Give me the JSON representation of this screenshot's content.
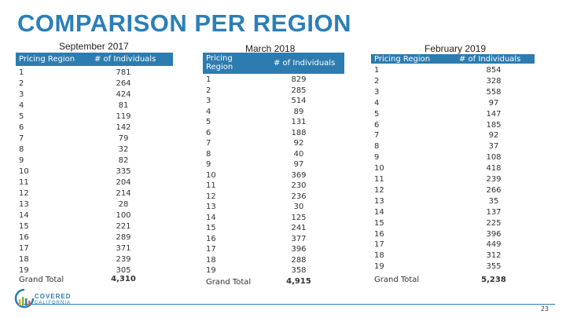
{
  "title": "COMPARISON PER REGION",
  "panels": [
    {
      "title": "September 2017",
      "header_region": "Pricing Region",
      "header_count": "# of Individuals",
      "regions": [
        "1",
        "2",
        "3",
        "4",
        "5",
        "6",
        "7",
        "8",
        "9",
        "10",
        "11",
        "12",
        "13",
        "14",
        "15",
        "16",
        "17",
        "18",
        "19"
      ],
      "values": [
        "781",
        "264",
        "424",
        "81",
        "119",
        "142",
        "79",
        "32",
        "82",
        "335",
        "204",
        "214",
        "28",
        "100",
        "221",
        "289",
        "371",
        "239",
        "305"
      ],
      "total_label": "Grand Total",
      "total_value": "4,310"
    },
    {
      "title": "March 2018",
      "header_region": "Pricing Region",
      "header_count": "# of Individuals",
      "regions": [
        "1",
        "2",
        "3",
        "4",
        "5",
        "6",
        "7",
        "8",
        "9",
        "10",
        "11",
        "12",
        "13",
        "14",
        "15",
        "16",
        "17",
        "18",
        "19"
      ],
      "values": [
        "829",
        "285",
        "514",
        "89",
        "131",
        "188",
        "92",
        "40",
        "97",
        "369",
        "230",
        "236",
        "30",
        "125",
        "241",
        "377",
        "396",
        "288",
        "358"
      ],
      "total_label": "Grand Total",
      "total_value": "4,915"
    },
    {
      "title": "February 2019",
      "header_region": "Pricing Region",
      "header_count": "# of Individuals",
      "regions": [
        "1",
        "2",
        "3",
        "4",
        "5",
        "6",
        "7",
        "8",
        "9",
        "10",
        "11",
        "12",
        "13",
        "14",
        "15",
        "16",
        "17",
        "18",
        "19"
      ],
      "values": [
        "854",
        "328",
        "558",
        "97",
        "147",
        "185",
        "92",
        "37",
        "108",
        "418",
        "239",
        "266",
        "35",
        "137",
        "225",
        "396",
        "449",
        "312",
        "355"
      ],
      "total_label": "Grand Total",
      "total_value": "5,238"
    }
  ],
  "footer": {
    "logo_line1": "COVERED",
    "logo_line2": "CALIFORNIA",
    "page_number": "23"
  },
  "colors": {
    "title": "#2b7fb8",
    "header_bg": "#2d7cb0"
  }
}
